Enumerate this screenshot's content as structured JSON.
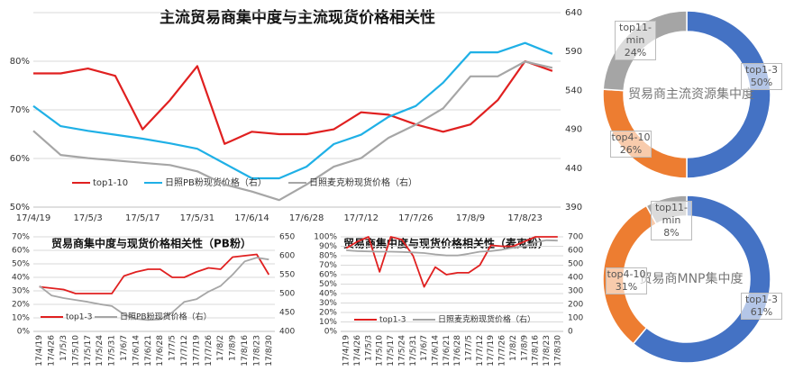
{
  "chart_data": [
    {
      "type": "line",
      "title": "主流贸易商集中度与主流现货价格相关性",
      "categories": [
        "17/4/19",
        null,
        "17/5/3",
        null,
        "17/5/17",
        null,
        "17/5/31",
        null,
        "17/6/14",
        null,
        "17/6/28",
        null,
        "17/7/12",
        null,
        "17/7/26",
        null,
        "17/8/9",
        null,
        "17/8/23",
        null
      ],
      "ylim": [
        50,
        90
      ],
      "yticks": [
        {
          "value": 50,
          "label": "50%"
        },
        {
          "value": 60,
          "label": "60%"
        },
        {
          "value": 70,
          "label": "70%"
        },
        {
          "value": 80,
          "label": "80%"
        }
      ],
      "y2lim": [
        390,
        640
      ],
      "y2ticks": [
        390,
        440,
        490,
        540,
        590,
        640
      ],
      "grid": true,
      "series": [
        {
          "name": "top1-10",
          "color": "#e02020",
          "values": [
            77.5,
            77.5,
            78.5,
            77,
            66,
            72,
            79,
            63,
            65.5,
            65,
            65,
            66,
            69.5,
            69,
            67,
            65.5,
            67,
            72,
            80,
            78
          ]
        },
        {
          "name": "日照PB粉现货价格（右）",
          "color": "#1fb0e6",
          "axis": "y2",
          "values": [
            520,
            494,
            488,
            483,
            478,
            472,
            465,
            446,
            427,
            427,
            442,
            471,
            483,
            506,
            520,
            550,
            589,
            589,
            601,
            587
          ]
        },
        {
          "name": "日照麦克粉现货价格（右）",
          "color": "#a6a6a6",
          "axis": "y2",
          "values": [
            488,
            457,
            453,
            450,
            447,
            444,
            436,
            419,
            410,
            399,
            419,
            442,
            453,
            479,
            496,
            517,
            558,
            558,
            577,
            569
          ]
        }
      ]
    },
    {
      "type": "line",
      "title": "贸易商集中度与现货价格相关性（PB粉）",
      "categories": [
        "17/4/19",
        "17/4/26",
        "17/5/3",
        "17/5/10",
        "17/5/17",
        "17/5/24",
        "17/5/31",
        "17/6/7",
        "17/6/14",
        "17/6/21",
        "17/6/28",
        "17/7/5",
        "17/7/12",
        "17/7/19",
        "17/7/26",
        "17/8/2",
        "17/8/9",
        "17/8/16",
        "17/8/23",
        "17/8/30"
      ],
      "ylim": [
        0,
        70
      ],
      "yticks": [
        {
          "value": 0,
          "label": "0%"
        },
        {
          "value": 10,
          "label": "10%"
        },
        {
          "value": 20,
          "label": "20%"
        },
        {
          "value": 30,
          "label": "30%"
        },
        {
          "value": 40,
          "label": "40%"
        },
        {
          "value": 50,
          "label": "50%"
        },
        {
          "value": 60,
          "label": "60%"
        },
        {
          "value": 70,
          "label": "70%"
        }
      ],
      "y2lim": [
        400,
        650
      ],
      "y2ticks": [
        400,
        450,
        500,
        550,
        600,
        650
      ],
      "grid": true,
      "series": [
        {
          "name": "top1-3",
          "color": "#e02020",
          "values": [
            33,
            32,
            31,
            28,
            28,
            28,
            28,
            41,
            44,
            46,
            46,
            40,
            40,
            44,
            47,
            46,
            55,
            56,
            57,
            42
          ]
        },
        {
          "name": "日照PB粉现货价格（右）",
          "color": "#a6a6a6",
          "axis": "y2",
          "values": [
            520,
            495,
            488,
            483,
            478,
            472,
            467,
            445,
            433,
            430,
            432,
            450,
            478,
            485,
            505,
            520,
            550,
            585,
            595,
            590
          ]
        }
      ]
    },
    {
      "type": "line",
      "title": "贸易商集中度与现货价格相关性（麦克粉）",
      "categories": [
        "17/4/19",
        "17/4/26",
        "17/5/3",
        "17/5/10",
        "17/5/17",
        "17/5/24",
        "17/5/31",
        "17/6/7",
        "17/6/14",
        "17/6/21",
        "17/6/28",
        "17/7/5",
        "17/7/12",
        "17/7/19",
        "17/7/26",
        "17/8/2",
        "17/8/9",
        "17/8/16",
        "17/8/23",
        "17/8/30"
      ],
      "ylim": [
        0,
        100
      ],
      "yticks": [
        {
          "value": 0,
          "label": "0%"
        },
        {
          "value": 10,
          "label": "10%"
        },
        {
          "value": 20,
          "label": "20%"
        },
        {
          "value": 30,
          "label": "30%"
        },
        {
          "value": 40,
          "label": "40%"
        },
        {
          "value": 50,
          "label": "50%"
        },
        {
          "value": 60,
          "label": "60%"
        },
        {
          "value": 70,
          "label": "70%"
        },
        {
          "value": 80,
          "label": "80%"
        },
        {
          "value": 90,
          "label": "90%"
        },
        {
          "value": 100,
          "label": "100%"
        }
      ],
      "y2lim": [
        0,
        700
      ],
      "y2ticks": [
        0,
        100,
        200,
        300,
        400,
        500,
        600,
        700
      ],
      "grid": true,
      "series": [
        {
          "name": "top1-3",
          "color": "#e02020",
          "values": [
            88,
            95,
            100,
            63,
            100,
            97,
            80,
            47,
            68,
            60,
            62,
            62,
            70,
            91,
            90,
            90,
            95,
            100,
            100,
            100
          ]
        },
        {
          "name": "日照麦克粉现货价格（右）",
          "color": "#a6a6a6",
          "axis": "y2",
          "values": [
            600,
            595,
            592,
            590,
            590,
            588,
            585,
            580,
            570,
            562,
            562,
            575,
            590,
            595,
            605,
            620,
            630,
            660,
            675,
            672
          ]
        }
      ]
    },
    {
      "type": "donut",
      "title": "贸易商主流资源集中度",
      "categories": [
        "top1-3",
        "top4-10",
        "top11-min"
      ],
      "values": [
        50,
        26,
        24
      ],
      "value_labels": [
        "50%",
        "26%",
        "24%"
      ],
      "colors": [
        "#4472c4",
        "#ed7d31",
        "#a5a5a5"
      ]
    },
    {
      "type": "donut",
      "title": "贸易商MNP集中度",
      "categories": [
        "top1-3",
        "top4-10",
        "top11-min"
      ],
      "values": [
        61,
        31,
        8
      ],
      "value_labels": [
        "61%",
        "31%",
        "8%"
      ],
      "colors": [
        "#4472c4",
        "#ed7d31",
        "#a5a5a5"
      ]
    }
  ]
}
